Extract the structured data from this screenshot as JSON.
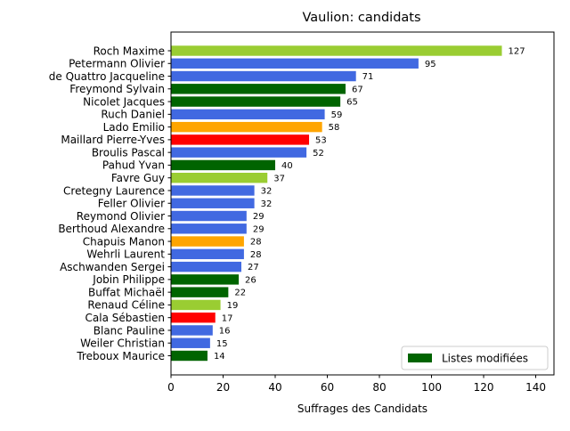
{
  "chart_data": {
    "type": "bar",
    "orientation": "horizontal",
    "title": "Vaulion: candidats",
    "xlabel": "Suffrages des Candidats",
    "ylabel": "",
    "xlim": [
      0,
      147
    ],
    "xticks": [
      0,
      20,
      40,
      60,
      80,
      100,
      120,
      140
    ],
    "grid": false,
    "legend": {
      "placement": "lower-right",
      "entries": [
        {
          "label": "Listes modifiées",
          "color": "#006400"
        }
      ]
    },
    "categories": [
      "Roch Maxime",
      "Petermann Olivier",
      "de Quattro Jacqueline",
      "Freymond Sylvain",
      "Nicolet Jacques",
      "Ruch Daniel",
      "Lado Emilio",
      "Maillard Pierre-Yves",
      "Broulis Pascal",
      "Pahud Yvan",
      "Favre Guy",
      "Cretegny Laurence",
      "Feller Olivier",
      "Reymond Olivier",
      "Berthoud Alexandre",
      "Chapuis Manon",
      "Wehrli Laurent",
      "Aschwanden Sergei",
      "Jobin Philippe",
      "Buffat Michaël",
      "Renaud Céline",
      "Cala Sébastien",
      "Blanc Pauline",
      "Weiler Christian",
      "Treboux Maurice"
    ],
    "values": [
      127,
      95,
      71,
      67,
      65,
      59,
      58,
      53,
      52,
      40,
      37,
      32,
      32,
      29,
      29,
      28,
      28,
      27,
      26,
      22,
      19,
      17,
      16,
      15,
      14
    ],
    "colors": [
      "#9acd32",
      "#4169e1",
      "#4169e1",
      "#006400",
      "#006400",
      "#4169e1",
      "#ffa500",
      "#ff0000",
      "#4169e1",
      "#006400",
      "#9acd32",
      "#4169e1",
      "#4169e1",
      "#4169e1",
      "#4169e1",
      "#ffa500",
      "#4169e1",
      "#4169e1",
      "#006400",
      "#006400",
      "#9acd32",
      "#ff0000",
      "#4169e1",
      "#4169e1",
      "#006400"
    ]
  }
}
